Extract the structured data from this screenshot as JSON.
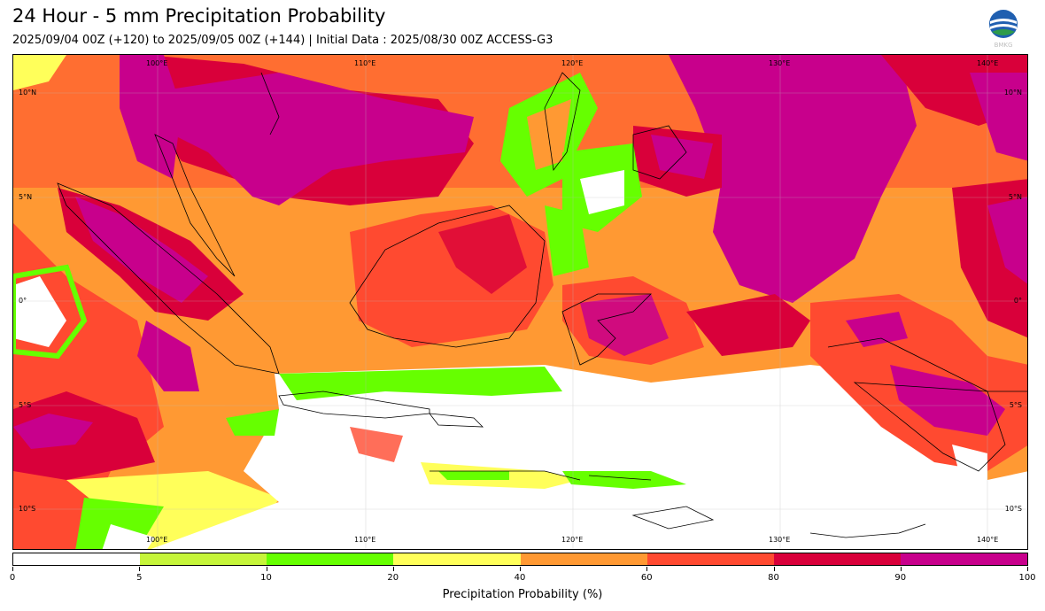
{
  "header": {
    "title": "24 Hour - 5 mm Precipitation Probability",
    "subtitle": "2025/09/04 00Z (+120) to 2025/09/05 00Z (+144) | Initial Data : 2025/08/30 00Z ACCESS-G3",
    "logo_text": "BMKG"
  },
  "map": {
    "lon_labels": [
      "100°E",
      "110°E",
      "120°E",
      "130°E",
      "140°E"
    ],
    "lat_labels": [
      "10°N",
      "5°N",
      "0°",
      "5°S",
      "10°S"
    ]
  },
  "colorbar": {
    "title": "Precipitation Probability (%)",
    "ticks": [
      "0",
      "5",
      "10",
      "20",
      "40",
      "60",
      "80",
      "90",
      "100"
    ],
    "colors": [
      "#ffffff",
      "#c6f53a",
      "#66ff00",
      "#ffff5a",
      "#ff9933",
      "#ff4a30",
      "#d9003a",
      "#c8008c"
    ]
  }
}
